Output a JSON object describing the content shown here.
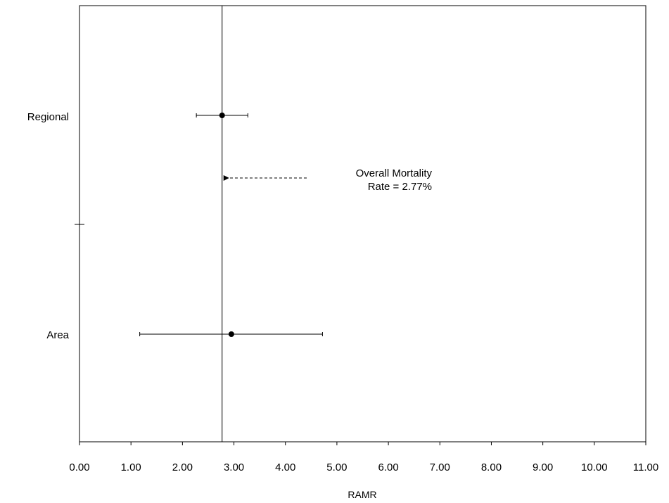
{
  "chart_data": {
    "type": "scatter",
    "subtype": "forest-plot-with-error-bars",
    "xlabel": "RAMR",
    "xlim": [
      0,
      11
    ],
    "x_ticks": [
      "0.00",
      "1.00",
      "2.00",
      "3.00",
      "4.00",
      "5.00",
      "6.00",
      "7.00",
      "8.00",
      "9.00",
      "10.00",
      "11.00"
    ],
    "categories": [
      "Regional",
      "Area"
    ],
    "points": [
      {
        "category": "Regional",
        "value": 2.77,
        "lower": 2.27,
        "upper": 3.27
      },
      {
        "category": "Area",
        "value": 2.95,
        "lower": 1.17,
        "upper": 4.72
      }
    ],
    "reference_line": {
      "value": 2.77
    },
    "annotation": {
      "line1": "Overall Mortality",
      "line2": "Rate = 2.77%"
    },
    "grid": false,
    "legend": "none"
  }
}
